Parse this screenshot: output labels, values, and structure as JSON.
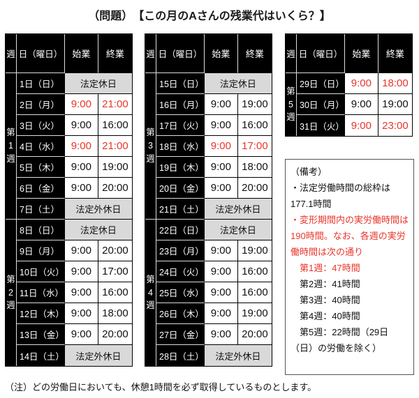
{
  "title": "（問題）　【この月のAさんの残業代はいくら？】",
  "colors": {
    "red": "#e8362a",
    "holiday_bg": "#d9d9d9",
    "dark_cell_bg": "#000000",
    "dark_cell_text": "#ffffff"
  },
  "column_headers": {
    "week": "週",
    "day": "日（曜日）",
    "start": "始業",
    "end": "終業"
  },
  "tables": [
    {
      "weeks": [
        {
          "label": "第1週",
          "rows": [
            {
              "day": "1日（日）",
              "holiday": "法定休日"
            },
            {
              "day": "2日（月）",
              "start": "9:00",
              "end": "21:00",
              "red": true
            },
            {
              "day": "3日（火）",
              "start": "9:00",
              "end": "16:00"
            },
            {
              "day": "4日（水）",
              "start": "9:00",
              "end": "21:00",
              "red": true
            },
            {
              "day": "5日（木）",
              "start": "9:00",
              "end": "19:00"
            },
            {
              "day": "6日（金）",
              "start": "9:00",
              "end": "20:00"
            },
            {
              "day": "7日（土）",
              "holiday": "法定外休日"
            }
          ]
        },
        {
          "label": "第2週",
          "rows": [
            {
              "day": "8日（日）",
              "holiday": "法定休日"
            },
            {
              "day": "9日（月）",
              "start": "9:00",
              "end": "20:00"
            },
            {
              "day": "10日（火）",
              "start": "9:00",
              "end": "17:00"
            },
            {
              "day": "11日（水）",
              "start": "9:00",
              "end": "16:00"
            },
            {
              "day": "12日（木）",
              "start": "9:00",
              "end": "18:00"
            },
            {
              "day": "13日（金）",
              "start": "9:00",
              "end": "20:00"
            },
            {
              "day": "14日（土）",
              "holiday": "法定外休日"
            }
          ]
        }
      ]
    },
    {
      "weeks": [
        {
          "label": "第3週",
          "rows": [
            {
              "day": "15日（日）",
              "holiday": "法定休日"
            },
            {
              "day": "16日（月）",
              "start": "9:00",
              "end": "19:00"
            },
            {
              "day": "17日（火）",
              "start": "9:00",
              "end": "16:00"
            },
            {
              "day": "18日（水）",
              "start": "9:00",
              "end": "17:00",
              "red": true
            },
            {
              "day": "19日（木）",
              "start": "9:00",
              "end": "18:00"
            },
            {
              "day": "20日（金）",
              "start": "9:00",
              "end": "20:00"
            },
            {
              "day": "21日（土）",
              "holiday": "法定外休日"
            }
          ]
        },
        {
          "label": "第4週",
          "rows": [
            {
              "day": "22日（日）",
              "holiday": "法定休日"
            },
            {
              "day": "23日（月）",
              "start": "9:00",
              "end": "19:00"
            },
            {
              "day": "24日（火）",
              "start": "9:00",
              "end": "16:00"
            },
            {
              "day": "25日（水）",
              "start": "9:00",
              "end": "16:00"
            },
            {
              "day": "26日（木）",
              "start": "9:00",
              "end": "19:00"
            },
            {
              "day": "27日（金）",
              "start": "9:00",
              "end": "20:00"
            },
            {
              "day": "28日（土）",
              "holiday": "法定外休日"
            }
          ]
        }
      ]
    },
    {
      "weeks": [
        {
          "label": "第5週",
          "rows": [
            {
              "day": "29日（日）",
              "start": "9:00",
              "end": "18:00",
              "red": true
            },
            {
              "day": "30日（月）",
              "start": "9:00",
              "end": "19:00"
            },
            {
              "day": "31日（火）",
              "start": "9:00",
              "end": "23:00",
              "red": true
            }
          ]
        }
      ]
    }
  ],
  "remarks": {
    "lines": [
      {
        "text": "（備考）",
        "red": false
      },
      {
        "text": "・法定労働時間の総枠は",
        "red": false
      },
      {
        "text": "177.1時間",
        "red": false
      },
      {
        "text": "・変形期間内の実労働時間は",
        "red": true
      },
      {
        "text": "190時間。なお、各週の実労",
        "red": true
      },
      {
        "text": "働時間は次の通り",
        "red": true
      },
      {
        "text": "　第1週：47時間",
        "red": true
      },
      {
        "text": "　第2週：41時間",
        "red": false
      },
      {
        "text": "　第3週：40時間",
        "red": false
      },
      {
        "text": "　第4週：40時間",
        "red": false
      },
      {
        "text": "　第5週：22時間（29日",
        "red": false
      },
      {
        "text": "（日）の労働を除く）",
        "red": false
      }
    ]
  },
  "footnote": "（注）どの労働日においても、休憩1時間を必ず取得しているものとします。"
}
